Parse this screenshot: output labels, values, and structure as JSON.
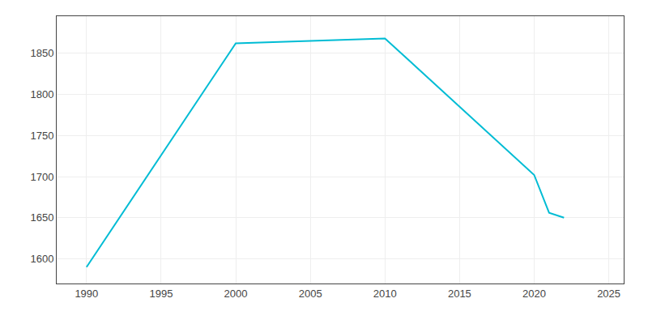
{
  "chart_data": {
    "type": "line",
    "x": [
      1990,
      2000,
      2010,
      2020,
      2021,
      2022
    ],
    "values": [
      1590,
      1862,
      1868,
      1702,
      1656,
      1650
    ],
    "color": "#00BCD4",
    "xlim": [
      1988,
      2026
    ],
    "ylim": [
      1570,
      1895
    ],
    "xticks": [
      1990,
      1995,
      2000,
      2005,
      2010,
      2015,
      2020,
      2025
    ],
    "yticks": [
      1600,
      1650,
      1700,
      1750,
      1800,
      1850
    ],
    "grid": true
  }
}
